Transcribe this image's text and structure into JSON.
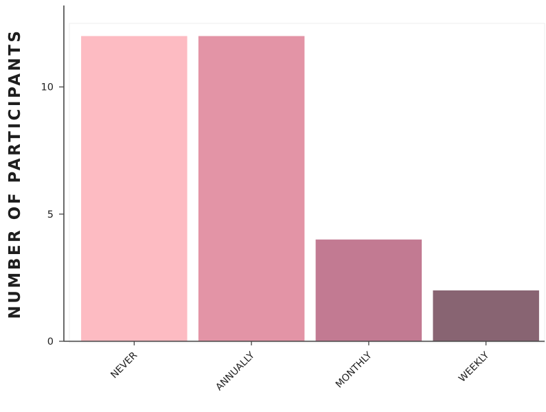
{
  "chart_data": {
    "type": "bar",
    "title": "",
    "xlabel": "",
    "ylabel": "NUMBER OF PARTICIPANTS",
    "categories": [
      "NEVER",
      "ANNUALLY",
      "MONTHLY",
      "WEEKLY"
    ],
    "values": [
      12,
      12,
      4,
      2
    ],
    "colors": [
      "#fdbbc2",
      "#e394a6",
      "#c27a92",
      "#886472"
    ],
    "ylim": [
      0,
      12.5
    ],
    "yticks": [
      0,
      5,
      10
    ],
    "ytick_labels": [
      "0",
      "5",
      "10"
    ],
    "grid": false,
    "legend": "none"
  }
}
